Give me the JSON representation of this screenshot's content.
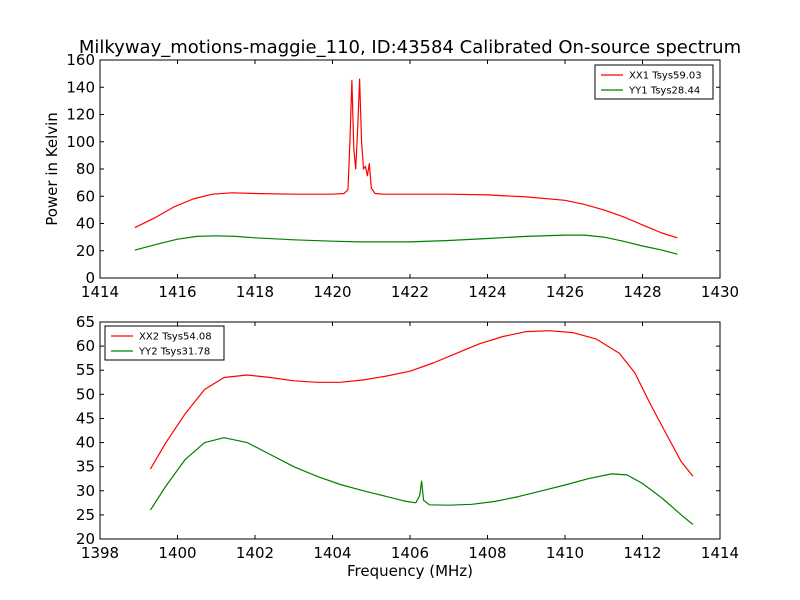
{
  "chart_data": [
    {
      "type": "line",
      "title": "Milkyway_motions-maggie_110, ID:43584 Calibrated On-source spectrum",
      "xlabel": "",
      "ylabel": "Power in Kelvin",
      "xlim": [
        1414,
        1430
      ],
      "ylim": [
        0,
        160
      ],
      "xticks": [
        1414,
        1416,
        1418,
        1420,
        1422,
        1424,
        1426,
        1428,
        1430
      ],
      "yticks": [
        0,
        20,
        40,
        60,
        80,
        100,
        120,
        140,
        160
      ],
      "grid": false,
      "legend_position": "top-right",
      "series": [
        {
          "name": "XX1 Tsys59.03",
          "color": "#ff0000",
          "x": [
            1414.9,
            1415.4,
            1415.9,
            1416.4,
            1416.9,
            1417.4,
            1418.0,
            1419.0,
            1420.0,
            1420.3,
            1420.4,
            1420.45,
            1420.5,
            1420.55,
            1420.6,
            1420.65,
            1420.7,
            1420.75,
            1420.8,
            1420.85,
            1420.9,
            1420.95,
            1421.0,
            1421.1,
            1421.3,
            1422.0,
            1423.0,
            1424.0,
            1425.0,
            1426.0,
            1426.5,
            1427.0,
            1427.5,
            1428.0,
            1428.5,
            1428.9
          ],
          "y": [
            37,
            44,
            52,
            58,
            61.5,
            62.5,
            62,
            61.5,
            61.5,
            62,
            65,
            100,
            145,
            95,
            80,
            110,
            146,
            100,
            80,
            82,
            75,
            84,
            66,
            62,
            61.5,
            61.5,
            61.5,
            61,
            59.5,
            57,
            54,
            50,
            45,
            39,
            33,
            29.5
          ]
        },
        {
          "name": "YY1 Tsys28.44",
          "color": "#008000",
          "x": [
            1414.9,
            1415.5,
            1416.0,
            1416.5,
            1417.0,
            1417.5,
            1418.0,
            1419.0,
            1420.0,
            1420.7,
            1421.0,
            1422.0,
            1423.0,
            1424.0,
            1425.0,
            1426.0,
            1426.5,
            1427.0,
            1427.5,
            1428.0,
            1428.5,
            1428.9
          ],
          "y": [
            20.5,
            25,
            28.5,
            30.5,
            31,
            30.5,
            29.5,
            28,
            27,
            26.5,
            26.5,
            26.5,
            27.5,
            29,
            30.5,
            31.5,
            31.5,
            30,
            27,
            23.5,
            20.5,
            17.5
          ]
        }
      ]
    },
    {
      "type": "line",
      "title": "",
      "xlabel": "Frequency (MHz)",
      "ylabel": "",
      "xlim": [
        1398,
        1414
      ],
      "ylim": [
        20,
        65
      ],
      "xticks": [
        1398,
        1400,
        1402,
        1404,
        1406,
        1408,
        1410,
        1412,
        1414
      ],
      "yticks": [
        20,
        25,
        30,
        35,
        40,
        45,
        50,
        55,
        60,
        65
      ],
      "grid": false,
      "legend_position": "top-left",
      "series": [
        {
          "name": "XX2 Tsys54.08",
          "color": "#ff0000",
          "x": [
            1399.3,
            1399.7,
            1400.2,
            1400.7,
            1401.2,
            1401.8,
            1402.4,
            1403.0,
            1403.6,
            1404.2,
            1404.8,
            1405.4,
            1406.0,
            1406.6,
            1407.2,
            1407.8,
            1408.4,
            1409.0,
            1409.6,
            1410.2,
            1410.8,
            1411.4,
            1411.8,
            1412.2,
            1412.6,
            1413.0,
            1413.3
          ],
          "y": [
            34.5,
            40,
            46,
            51,
            53.5,
            54,
            53.5,
            52.8,
            52.5,
            52.5,
            53,
            53.8,
            54.8,
            56.5,
            58.5,
            60.5,
            62,
            63,
            63.2,
            62.8,
            61.5,
            58.5,
            54.5,
            48,
            42,
            36,
            33
          ]
        },
        {
          "name": "YY2 Tsys31.78",
          "color": "#008000",
          "x": [
            1399.3,
            1399.7,
            1400.2,
            1400.7,
            1401.2,
            1401.8,
            1402.4,
            1403.0,
            1403.6,
            1404.2,
            1404.8,
            1405.4,
            1405.9,
            1406.15,
            1406.25,
            1406.3,
            1406.35,
            1406.5,
            1407.0,
            1407.6,
            1408.2,
            1408.8,
            1409.4,
            1410.0,
            1410.6,
            1411.2,
            1411.6,
            1412.0,
            1412.5,
            1413.0,
            1413.3
          ],
          "y": [
            26,
            31,
            36.5,
            40,
            41,
            40,
            37.5,
            35,
            33,
            31.3,
            30,
            28.8,
            27.8,
            27.5,
            29,
            32,
            28,
            27.1,
            27,
            27.2,
            27.8,
            28.8,
            30,
            31.2,
            32.5,
            33.5,
            33.3,
            31.5,
            28.5,
            25,
            23
          ]
        }
      ]
    }
  ]
}
